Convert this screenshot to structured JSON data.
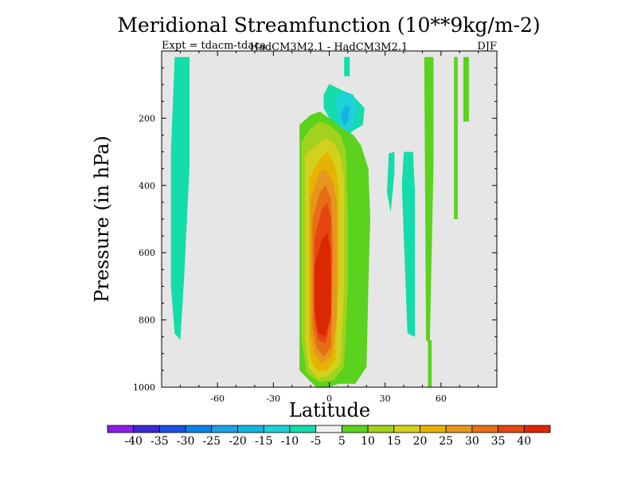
{
  "chart_data": {
    "type": "contour",
    "title": "Meridional Streamfunction (10**9kg/m-2)",
    "subtitle_left": "Expt = tdacm-tdaca",
    "subtitle_center": "HadCM3M2.1 - HadCM3M2.1",
    "subtitle_right": "DJF",
    "xlabel": "Latitude",
    "ylabel": "Pressure (in hPa)",
    "xlim": [
      -90,
      90
    ],
    "ylim": [
      1000,
      0
    ],
    "xticks": [
      -60,
      -30,
      0,
      30,
      60
    ],
    "yticks": [
      200,
      400,
      600,
      800,
      1000
    ],
    "levels": [
      -40,
      -35,
      -30,
      -25,
      -20,
      -15,
      -10,
      -5,
      5,
      10,
      15,
      20,
      25,
      30,
      35,
      40
    ],
    "colorbar_colors": [
      "#8a1ee6",
      "#3c28d2",
      "#1e50e6",
      "#0a82e6",
      "#1ea0e6",
      "#14b4e1",
      "#1ed2d7",
      "#14dcaa",
      "#f0f0f0",
      "#5ad21e",
      "#a0d21e",
      "#d2d21e",
      "#e6b400",
      "#e6961e",
      "#e66e14",
      "#e64614",
      "#dc2800"
    ],
    "background_color": "#e6e6e6",
    "regions": [
      {
        "name": "sh-band",
        "level": -5,
        "lat": [
          -83,
          -75,
          -75,
          -78,
          -80,
          -83,
          -85,
          -85,
          -83
        ],
        "p": [
          18,
          18,
          340,
          680,
          860,
          840,
          700,
          300,
          18
        ]
      },
      {
        "name": "upper-neg",
        "level": -5,
        "lat": [
          -3,
          0,
          8,
          14,
          19,
          18,
          12,
          7,
          4,
          0,
          -3,
          -3
        ],
        "p": [
          130,
          98,
          120,
          140,
          170,
          220,
          240,
          290,
          250,
          200,
          170,
          130
        ]
      },
      {
        "name": "upper-neg-inner",
        "level": -10,
        "lat": [
          3,
          8,
          13,
          15,
          13,
          9,
          5,
          3
        ],
        "p": [
          140,
          120,
          130,
          170,
          220,
          250,
          210,
          140
        ]
      },
      {
        "name": "upper-neg-core",
        "level": -15,
        "lat": [
          6,
          9,
          11,
          10,
          8,
          6
        ],
        "p": [
          190,
          160,
          170,
          210,
          225,
          190
        ]
      },
      {
        "name": "jet-stub",
        "level": -5,
        "lat": [
          8,
          11,
          11,
          8
        ],
        "p": [
          18,
          18,
          75,
          75
        ]
      },
      {
        "name": "mid-neg-a",
        "level": -5,
        "lat": [
          32,
          35,
          35,
          33,
          31,
          32
        ],
        "p": [
          305,
          300,
          360,
          480,
          420,
          305
        ]
      },
      {
        "name": "mid-neg-b",
        "level": -5,
        "lat": [
          40,
          45,
          46,
          46,
          42,
          39,
          40
        ],
        "p": [
          300,
          300,
          420,
          850,
          840,
          400,
          300
        ]
      },
      {
        "name": "hl-pos-a",
        "level": 5,
        "lat": [
          51,
          56,
          56,
          54,
          52,
          51
        ],
        "p": [
          18,
          18,
          330,
          870,
          860,
          18
        ]
      },
      {
        "name": "hl-pos-b",
        "level": 5,
        "lat": [
          67,
          69,
          69,
          67
        ],
        "p": [
          18,
          18,
          500,
          500
        ]
      },
      {
        "name": "hl-pos-c",
        "level": 5,
        "lat": [
          72,
          75,
          75,
          72
        ],
        "p": [
          18,
          18,
          210,
          210
        ]
      },
      {
        "name": "hl-pos-d",
        "level": 5,
        "lat": [
          53,
          55,
          55,
          53
        ],
        "p": [
          860,
          860,
          1000,
          1000
        ]
      },
      {
        "name": "cell-5",
        "level": 5,
        "lat": [
          -16,
          -10,
          -5,
          0,
          7,
          13,
          17,
          21,
          22,
          21,
          20,
          14,
          5,
          0,
          -7,
          -16,
          -16
        ],
        "p": [
          220,
          190,
          180,
          200,
          230,
          250,
          280,
          350,
          500,
          700,
          940,
          990,
          990,
          1000,
          1000,
          950,
          220
        ]
      },
      {
        "name": "cell-10",
        "level": 10,
        "lat": [
          -15,
          -10,
          -5,
          0,
          6,
          9,
          10,
          10,
          8,
          2,
          -5,
          -12,
          -15,
          -15
        ],
        "p": [
          270,
          230,
          210,
          220,
          250,
          300,
          500,
          700,
          940,
          980,
          985,
          960,
          850,
          270
        ]
      },
      {
        "name": "cell-15",
        "level": 15,
        "lat": [
          -13,
          -7,
          -2,
          2,
          6,
          8,
          8,
          6,
          0,
          -6,
          -11,
          -13,
          -13
        ],
        "p": [
          310,
          280,
          260,
          270,
          310,
          380,
          700,
          930,
          965,
          975,
          940,
          850,
          310
        ]
      },
      {
        "name": "cell-20",
        "level": 20,
        "lat": [
          -11,
          -5,
          -1,
          3,
          5,
          5,
          3,
          -1,
          -6,
          -10,
          -11,
          -11
        ],
        "p": [
          380,
          320,
          300,
          340,
          400,
          700,
          920,
          950,
          955,
          920,
          850,
          380
        ]
      },
      {
        "name": "cell-25",
        "level": 25,
        "lat": [
          -10,
          -5,
          -2,
          2,
          4,
          4,
          1,
          -4,
          -8,
          -10,
          -10
        ],
        "p": [
          440,
          360,
          350,
          390,
          450,
          800,
          910,
          930,
          900,
          840,
          440
        ]
      },
      {
        "name": "cell-30",
        "level": 30,
        "lat": [
          -9,
          -5,
          -2,
          1,
          2,
          1,
          -3,
          -7,
          -9,
          -9
        ],
        "p": [
          500,
          420,
          400,
          440,
          600,
          880,
          910,
          880,
          820,
          500
        ]
      },
      {
        "name": "cell-35",
        "level": 35,
        "lat": [
          -8,
          -4,
          -1,
          1,
          1,
          -2,
          -6,
          -8,
          -8
        ],
        "p": [
          560,
          470,
          450,
          500,
          800,
          870,
          860,
          800,
          560
        ]
      },
      {
        "name": "cell-40",
        "level": 40,
        "lat": [
          -8,
          -4,
          -1,
          1,
          1,
          -2,
          -6,
          -8,
          -8
        ],
        "p": [
          640,
          560,
          540,
          600,
          780,
          850,
          840,
          770,
          640
        ]
      }
    ]
  }
}
